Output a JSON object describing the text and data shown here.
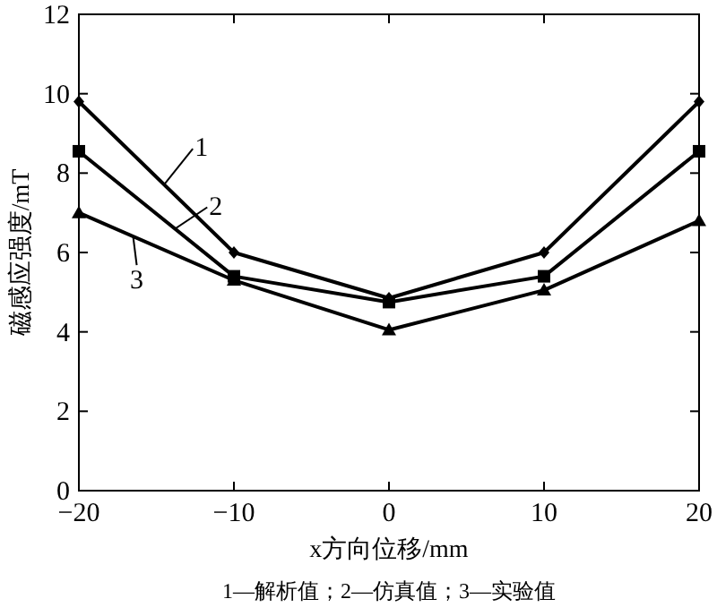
{
  "chart_data": {
    "type": "line",
    "xlabel": "x方向位移/mm",
    "ylabel": "磁感应强度/mT",
    "x": [
      -20,
      -10,
      0,
      10,
      20
    ],
    "xlim": [
      -20,
      20
    ],
    "xticks": [
      -20,
      -10,
      0,
      10,
      20
    ],
    "ylim": [
      0,
      12
    ],
    "yticks": [
      0,
      2,
      4,
      6,
      8,
      10,
      12
    ],
    "grid": false,
    "legend": "top left",
    "line_style": "solid",
    "series": [
      {
        "name": "1",
        "color": "#000000",
        "marker": "diamond",
        "values": [
          9.8,
          6.0,
          4.85,
          6.0,
          9.8
        ]
      },
      {
        "name": "2",
        "color": "#000000",
        "marker": "square",
        "values": [
          8.55,
          5.4,
          4.75,
          5.4,
          8.55
        ]
      },
      {
        "name": "3",
        "color": "#000000",
        "marker": "triangle",
        "values": [
          7.0,
          5.3,
          4.05,
          5.05,
          6.8
        ]
      }
    ],
    "annotations": [
      "1—解析值；2—仿真值；3—实验值"
    ]
  }
}
